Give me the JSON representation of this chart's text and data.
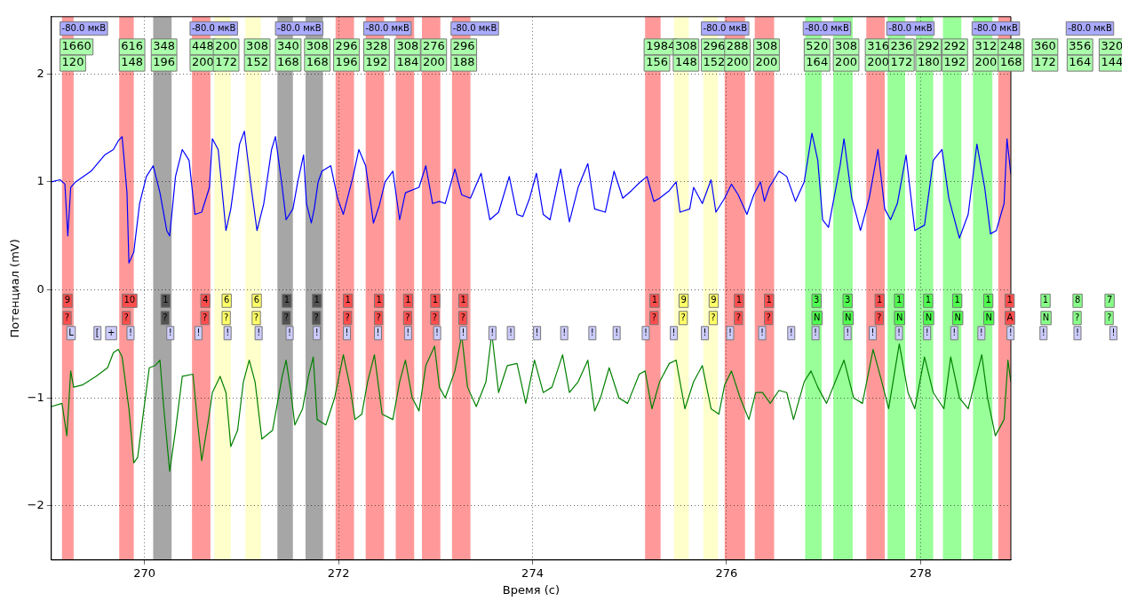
{
  "chart_data": {
    "type": "line",
    "xlabel": "Время (с)",
    "ylabel": "Потенциал (mV)",
    "xlim": [
      269.04,
      278.93
    ],
    "ylim": [
      -2.5,
      2.53
    ],
    "xticks": [
      270,
      272,
      274,
      276,
      278
    ],
    "yticks": [
      {
        "value": -2,
        "label": "−2"
      },
      {
        "value": -1,
        "label": "−1"
      },
      0,
      1,
      2
    ],
    "grid": true,
    "legend": false,
    "series": [
      {
        "color": "#0000ff",
        "x": [
          269.04,
          269.13,
          269.18,
          269.21,
          269.24,
          269.29,
          269.45,
          269.59,
          269.68,
          269.73,
          269.77,
          269.82,
          269.84,
          269.89,
          269.95,
          270.02,
          270.09,
          270.16,
          270.23,
          270.26,
          270.32,
          270.39,
          270.46,
          270.52,
          270.59,
          270.67,
          270.7,
          270.76,
          270.84,
          270.89,
          270.98,
          271.03,
          271.1,
          271.16,
          271.23,
          271.31,
          271.35,
          271.42,
          271.46,
          271.53,
          271.58,
          271.64,
          271.67,
          271.72,
          271.75,
          271.79,
          271.83,
          271.92,
          271.99,
          272.05,
          272.15,
          272.21,
          272.28,
          272.36,
          272.42,
          272.48,
          272.56,
          272.63,
          272.69,
          272.83,
          272.9,
          272.97,
          273.04,
          273.1,
          273.2,
          273.27,
          273.36,
          273.47,
          273.56,
          273.65,
          273.76,
          273.84,
          273.9,
          273.97,
          274.04,
          274.11,
          274.18,
          274.29,
          274.38,
          274.47,
          274.57,
          274.64,
          274.75,
          274.84,
          274.93,
          275.02,
          275.11,
          275.18,
          275.25,
          275.31,
          275.41,
          275.48,
          275.52,
          275.62,
          275.66,
          275.75,
          275.84,
          275.89,
          275.98,
          276.05,
          276.12,
          276.21,
          276.28,
          276.35,
          276.39,
          276.44,
          276.54,
          276.62,
          276.71,
          276.8,
          276.88,
          276.94,
          276.99,
          277.05,
          277.17,
          277.21,
          277.29,
          277.38,
          277.47,
          277.56,
          277.63,
          277.69,
          277.76,
          277.85,
          277.94,
          278.04,
          278.13,
          278.22,
          278.29,
          278.4,
          278.49,
          278.58,
          278.66,
          278.72,
          278.78,
          278.86,
          278.89,
          278.93
        ],
        "values": [
          1.0,
          1.02,
          0.98,
          0.5,
          0.95,
          1.0,
          1.1,
          1.25,
          1.3,
          1.38,
          1.42,
          0.9,
          0.25,
          0.35,
          0.8,
          1.05,
          1.15,
          0.9,
          0.55,
          0.5,
          1.05,
          1.3,
          1.2,
          0.7,
          0.72,
          0.95,
          1.4,
          1.3,
          0.55,
          0.75,
          1.35,
          1.47,
          0.95,
          0.55,
          0.8,
          1.3,
          1.42,
          0.95,
          0.65,
          0.75,
          1.0,
          1.25,
          0.8,
          0.62,
          0.75,
          1.0,
          1.1,
          1.15,
          0.85,
          0.7,
          1.05,
          1.3,
          1.15,
          0.62,
          0.78,
          1.0,
          1.1,
          0.65,
          0.9,
          0.95,
          1.15,
          0.8,
          0.82,
          0.8,
          1.12,
          0.88,
          0.85,
          1.08,
          0.65,
          0.72,
          1.05,
          0.7,
          0.68,
          0.85,
          1.08,
          0.7,
          0.65,
          1.12,
          0.63,
          0.95,
          1.17,
          0.75,
          0.72,
          1.1,
          0.85,
          0.92,
          1.0,
          1.05,
          0.82,
          0.85,
          0.92,
          1.0,
          0.72,
          0.75,
          0.95,
          0.8,
          1.02,
          0.72,
          0.85,
          0.98,
          0.88,
          0.7,
          0.88,
          1.0,
          0.82,
          0.95,
          1.1,
          1.05,
          0.82,
          1.0,
          1.45,
          1.2,
          0.65,
          0.58,
          1.15,
          1.4,
          0.85,
          0.55,
          0.85,
          1.3,
          0.75,
          0.65,
          0.8,
          1.25,
          0.55,
          0.6,
          1.2,
          1.3,
          0.85,
          0.48,
          0.7,
          1.35,
          0.95,
          0.52,
          0.55,
          0.8,
          1.4,
          1.07
        ]
      },
      {
        "color": "#008000",
        "x": [
          269.04,
          269.15,
          269.2,
          269.24,
          269.27,
          269.36,
          269.5,
          269.62,
          269.68,
          269.73,
          269.77,
          269.84,
          269.89,
          269.93,
          269.98,
          270.05,
          270.11,
          270.16,
          270.2,
          270.26,
          270.32,
          270.39,
          270.5,
          270.55,
          270.59,
          270.66,
          270.7,
          270.78,
          270.84,
          270.89,
          270.96,
          271.02,
          271.08,
          271.14,
          271.21,
          271.32,
          271.42,
          271.46,
          271.51,
          271.55,
          271.63,
          271.69,
          271.74,
          271.78,
          271.87,
          271.96,
          272.05,
          272.12,
          272.17,
          272.24,
          272.3,
          272.37,
          272.45,
          272.56,
          272.63,
          272.69,
          272.76,
          272.83,
          272.9,
          272.99,
          273.04,
          273.1,
          273.2,
          273.27,
          273.33,
          273.42,
          273.52,
          273.58,
          273.65,
          273.74,
          273.84,
          273.93,
          274.02,
          274.11,
          274.2,
          274.31,
          274.38,
          274.47,
          274.57,
          274.64,
          274.7,
          274.79,
          274.89,
          274.98,
          275.1,
          275.16,
          275.23,
          275.31,
          275.41,
          275.48,
          275.57,
          275.66,
          275.75,
          275.84,
          275.92,
          275.98,
          276.05,
          276.14,
          276.23,
          276.3,
          276.37,
          276.45,
          276.54,
          276.62,
          276.69,
          276.8,
          276.87,
          276.94,
          277.03,
          277.12,
          277.21,
          277.31,
          277.4,
          277.51,
          277.6,
          277.67,
          277.78,
          277.87,
          277.94,
          278.04,
          278.13,
          278.24,
          278.31,
          278.4,
          278.49,
          278.63,
          278.69,
          278.77,
          278.86,
          278.9,
          278.93
        ],
        "values": [
          -1.08,
          -1.05,
          -1.35,
          -0.75,
          -0.9,
          -0.88,
          -0.8,
          -0.72,
          -0.58,
          -0.55,
          -0.62,
          -1.1,
          -1.6,
          -1.55,
          -1.2,
          -0.72,
          -0.7,
          -0.65,
          -1.1,
          -1.68,
          -1.3,
          -0.8,
          -0.78,
          -1.25,
          -1.58,
          -1.2,
          -0.95,
          -0.8,
          -0.95,
          -1.45,
          -1.3,
          -0.85,
          -0.65,
          -0.85,
          -1.38,
          -1.3,
          -0.8,
          -0.65,
          -0.95,
          -1.25,
          -1.1,
          -0.8,
          -0.62,
          -1.2,
          -1.25,
          -1.0,
          -0.6,
          -0.9,
          -1.2,
          -1.15,
          -0.85,
          -0.6,
          -1.15,
          -1.2,
          -0.85,
          -0.65,
          -1.0,
          -1.12,
          -0.7,
          -0.52,
          -0.9,
          -1.0,
          -0.75,
          -0.42,
          -0.9,
          -1.08,
          -0.85,
          -0.4,
          -0.95,
          -0.7,
          -0.68,
          -1.05,
          -0.65,
          -0.95,
          -0.9,
          -0.6,
          -0.95,
          -0.85,
          -0.65,
          -1.12,
          -1.0,
          -0.72,
          -1.0,
          -1.05,
          -0.78,
          -0.75,
          -1.1,
          -0.85,
          -0.68,
          -0.65,
          -1.1,
          -0.85,
          -0.7,
          -1.1,
          -1.15,
          -0.88,
          -0.75,
          -1.0,
          -1.2,
          -0.95,
          -0.95,
          -1.05,
          -0.93,
          -0.95,
          -1.2,
          -0.85,
          -0.75,
          -0.9,
          -1.05,
          -0.85,
          -0.65,
          -1.0,
          -1.05,
          -0.55,
          -0.85,
          -1.1,
          -0.5,
          -0.95,
          -1.1,
          -0.62,
          -0.95,
          -1.1,
          -0.62,
          -1.0,
          -1.1,
          -0.6,
          -1.0,
          -1.35,
          -1.2,
          -0.65,
          -0.85
        ]
      }
    ],
    "bands": [
      {
        "axis": "x",
        "from": 269.15,
        "to": 269.27,
        "color": "#ff9999"
      },
      {
        "axis": "x",
        "from": 269.74,
        "to": 269.89,
        "color": "#ff9999"
      },
      {
        "axis": "x",
        "from": 270.09,
        "to": 270.28,
        "color": "#a6a6a6"
      },
      {
        "axis": "x",
        "from": 270.49,
        "to": 270.68,
        "color": "#ff9999"
      },
      {
        "axis": "x",
        "from": 270.72,
        "to": 270.89,
        "color": "#ffffcc"
      },
      {
        "axis": "x",
        "from": 271.04,
        "to": 271.2,
        "color": "#ffffcc"
      },
      {
        "axis": "x",
        "from": 271.37,
        "to": 271.53,
        "color": "#a6a6a6"
      },
      {
        "axis": "x",
        "from": 271.66,
        "to": 271.84,
        "color": "#a6a6a6"
      },
      {
        "axis": "x",
        "from": 271.97,
        "to": 272.16,
        "color": "#ff9999"
      },
      {
        "axis": "x",
        "from": 272.28,
        "to": 272.47,
        "color": "#ff9999"
      },
      {
        "axis": "x",
        "from": 272.59,
        "to": 272.78,
        "color": "#ff9999"
      },
      {
        "axis": "x",
        "from": 272.86,
        "to": 273.05,
        "color": "#ff9999"
      },
      {
        "axis": "x",
        "from": 273.17,
        "to": 273.36,
        "color": "#ff9999"
      },
      {
        "axis": "x",
        "from": 275.16,
        "to": 275.32,
        "color": "#ff9999"
      },
      {
        "axis": "x",
        "from": 275.46,
        "to": 275.61,
        "color": "#ffffcc"
      },
      {
        "axis": "x",
        "from": 275.76,
        "to": 275.91,
        "color": "#ffffcc"
      },
      {
        "axis": "x",
        "from": 275.98,
        "to": 276.19,
        "color": "#ff9999"
      },
      {
        "axis": "x",
        "from": 276.29,
        "to": 276.49,
        "color": "#ff9999"
      },
      {
        "axis": "x",
        "from": 276.81,
        "to": 276.98,
        "color": "#99ff99"
      },
      {
        "axis": "x",
        "from": 277.1,
        "to": 277.3,
        "color": "#99ff99"
      },
      {
        "axis": "x",
        "from": 277.44,
        "to": 277.63,
        "color": "#ff9999"
      },
      {
        "axis": "x",
        "from": 277.66,
        "to": 277.84,
        "color": "#99ff99"
      },
      {
        "axis": "x",
        "from": 277.95,
        "to": 278.13,
        "color": "#99ff99"
      },
      {
        "axis": "x",
        "from": 278.23,
        "to": 278.42,
        "color": "#99ff99"
      },
      {
        "axis": "x",
        "from": 278.54,
        "to": 278.74,
        "color": "#99ff99"
      },
      {
        "axis": "x",
        "from": 278.8,
        "to": 278.93,
        "color": "#ff9999"
      }
    ],
    "annotations": [
      "-80.0 мкВ",
      "-80.0 мкВ",
      "-80.0 мкВ",
      "-80.0 мкВ",
      "-80.0 мкВ",
      "-80.0 мкВ",
      "-80.0 мкВ",
      "-80.0 мкВ",
      "-80.0 мкВ",
      "-80.0 мкВ",
      "1660",
      "616",
      "348",
      "448",
      "200",
      "308",
      "340",
      "308",
      "296",
      "328",
      "308",
      "276",
      "296",
      "1984",
      "308",
      "296",
      "288",
      "308",
      "520",
      "308",
      "316",
      "236",
      "292",
      "292",
      "312",
      "248",
      "360",
      "356",
      "320",
      "120",
      "148",
      "196",
      "200",
      "172",
      "152",
      "168",
      "168",
      "196",
      "192",
      "184",
      "200",
      "188",
      "156",
      "148",
      "152",
      "200",
      "200",
      "164",
      "200",
      "200",
      "172",
      "180",
      "192",
      "200",
      "168",
      "172",
      "164",
      "144",
      "9",
      "10",
      "1",
      "4",
      "6",
      "6",
      "1",
      "1",
      "1",
      "1",
      "1",
      "1",
      "1",
      "1",
      "9",
      "9",
      "1",
      "1",
      "3",
      "3",
      "1",
      "1",
      "1",
      "1",
      "1",
      "1",
      "1",
      "8",
      "7",
      "?",
      "?",
      "?",
      "?",
      "?",
      "?",
      "?",
      "?",
      "?",
      "?",
      "?",
      "?",
      "?",
      "?",
      "?",
      "?",
      "?",
      "?",
      "N",
      "N",
      "?",
      "N",
      "N",
      "N",
      "N",
      "A",
      "N",
      "?",
      "?",
      "L",
      "[",
      "+",
      "!",
      "!",
      "!",
      "!",
      "!",
      "!",
      "!",
      "!",
      "!",
      "!",
      "!",
      "!",
      "!",
      "!",
      "!",
      "!",
      "!",
      "!",
      "!",
      "!",
      "!",
      "!",
      "!",
      "!",
      "!",
      "!",
      "!",
      "!",
      "!",
      "!",
      "!",
      "!",
      "!",
      "!",
      "!"
    ]
  }
}
